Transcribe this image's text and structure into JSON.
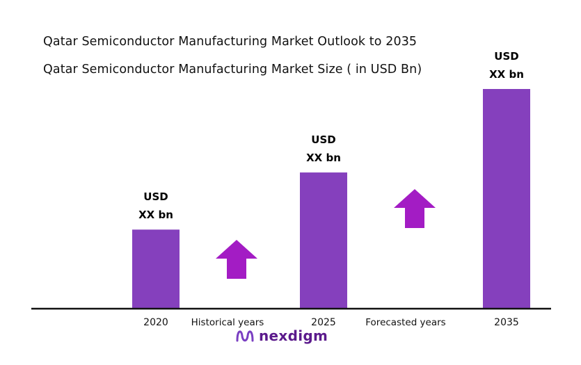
{
  "chart_data": {
    "type": "bar",
    "title": "Qatar Semiconductor Manufacturing Market Outlook to 2035",
    "subtitle": "Qatar Semiconductor Manufacturing  Market Size  ( in USD Bn)",
    "categories": [
      "2020",
      "2025",
      "2035"
    ],
    "values": [
      36,
      62,
      100
    ],
    "value_labels": [
      {
        "line1": "USD",
        "line2": "XX bn"
      },
      {
        "line1": "USD",
        "line2": "XX bn"
      },
      {
        "line1": "USD",
        "line2": "XX bn"
      }
    ],
    "ylim": [
      0,
      100
    ],
    "grid": false,
    "legend": "none",
    "periods": [
      {
        "label": "Historical years",
        "between": [
          "2020",
          "2025"
        ]
      },
      {
        "label": "Forecasted years",
        "between": [
          "2025",
          "2035"
        ]
      }
    ],
    "bar_color": "#8540bd",
    "arrow_color": "#a31cc4",
    "axis_color": "#111111"
  },
  "logo": {
    "text": "nexdigm",
    "color": "#5b1a8c",
    "icon": "nexdigm-wave-icon"
  }
}
